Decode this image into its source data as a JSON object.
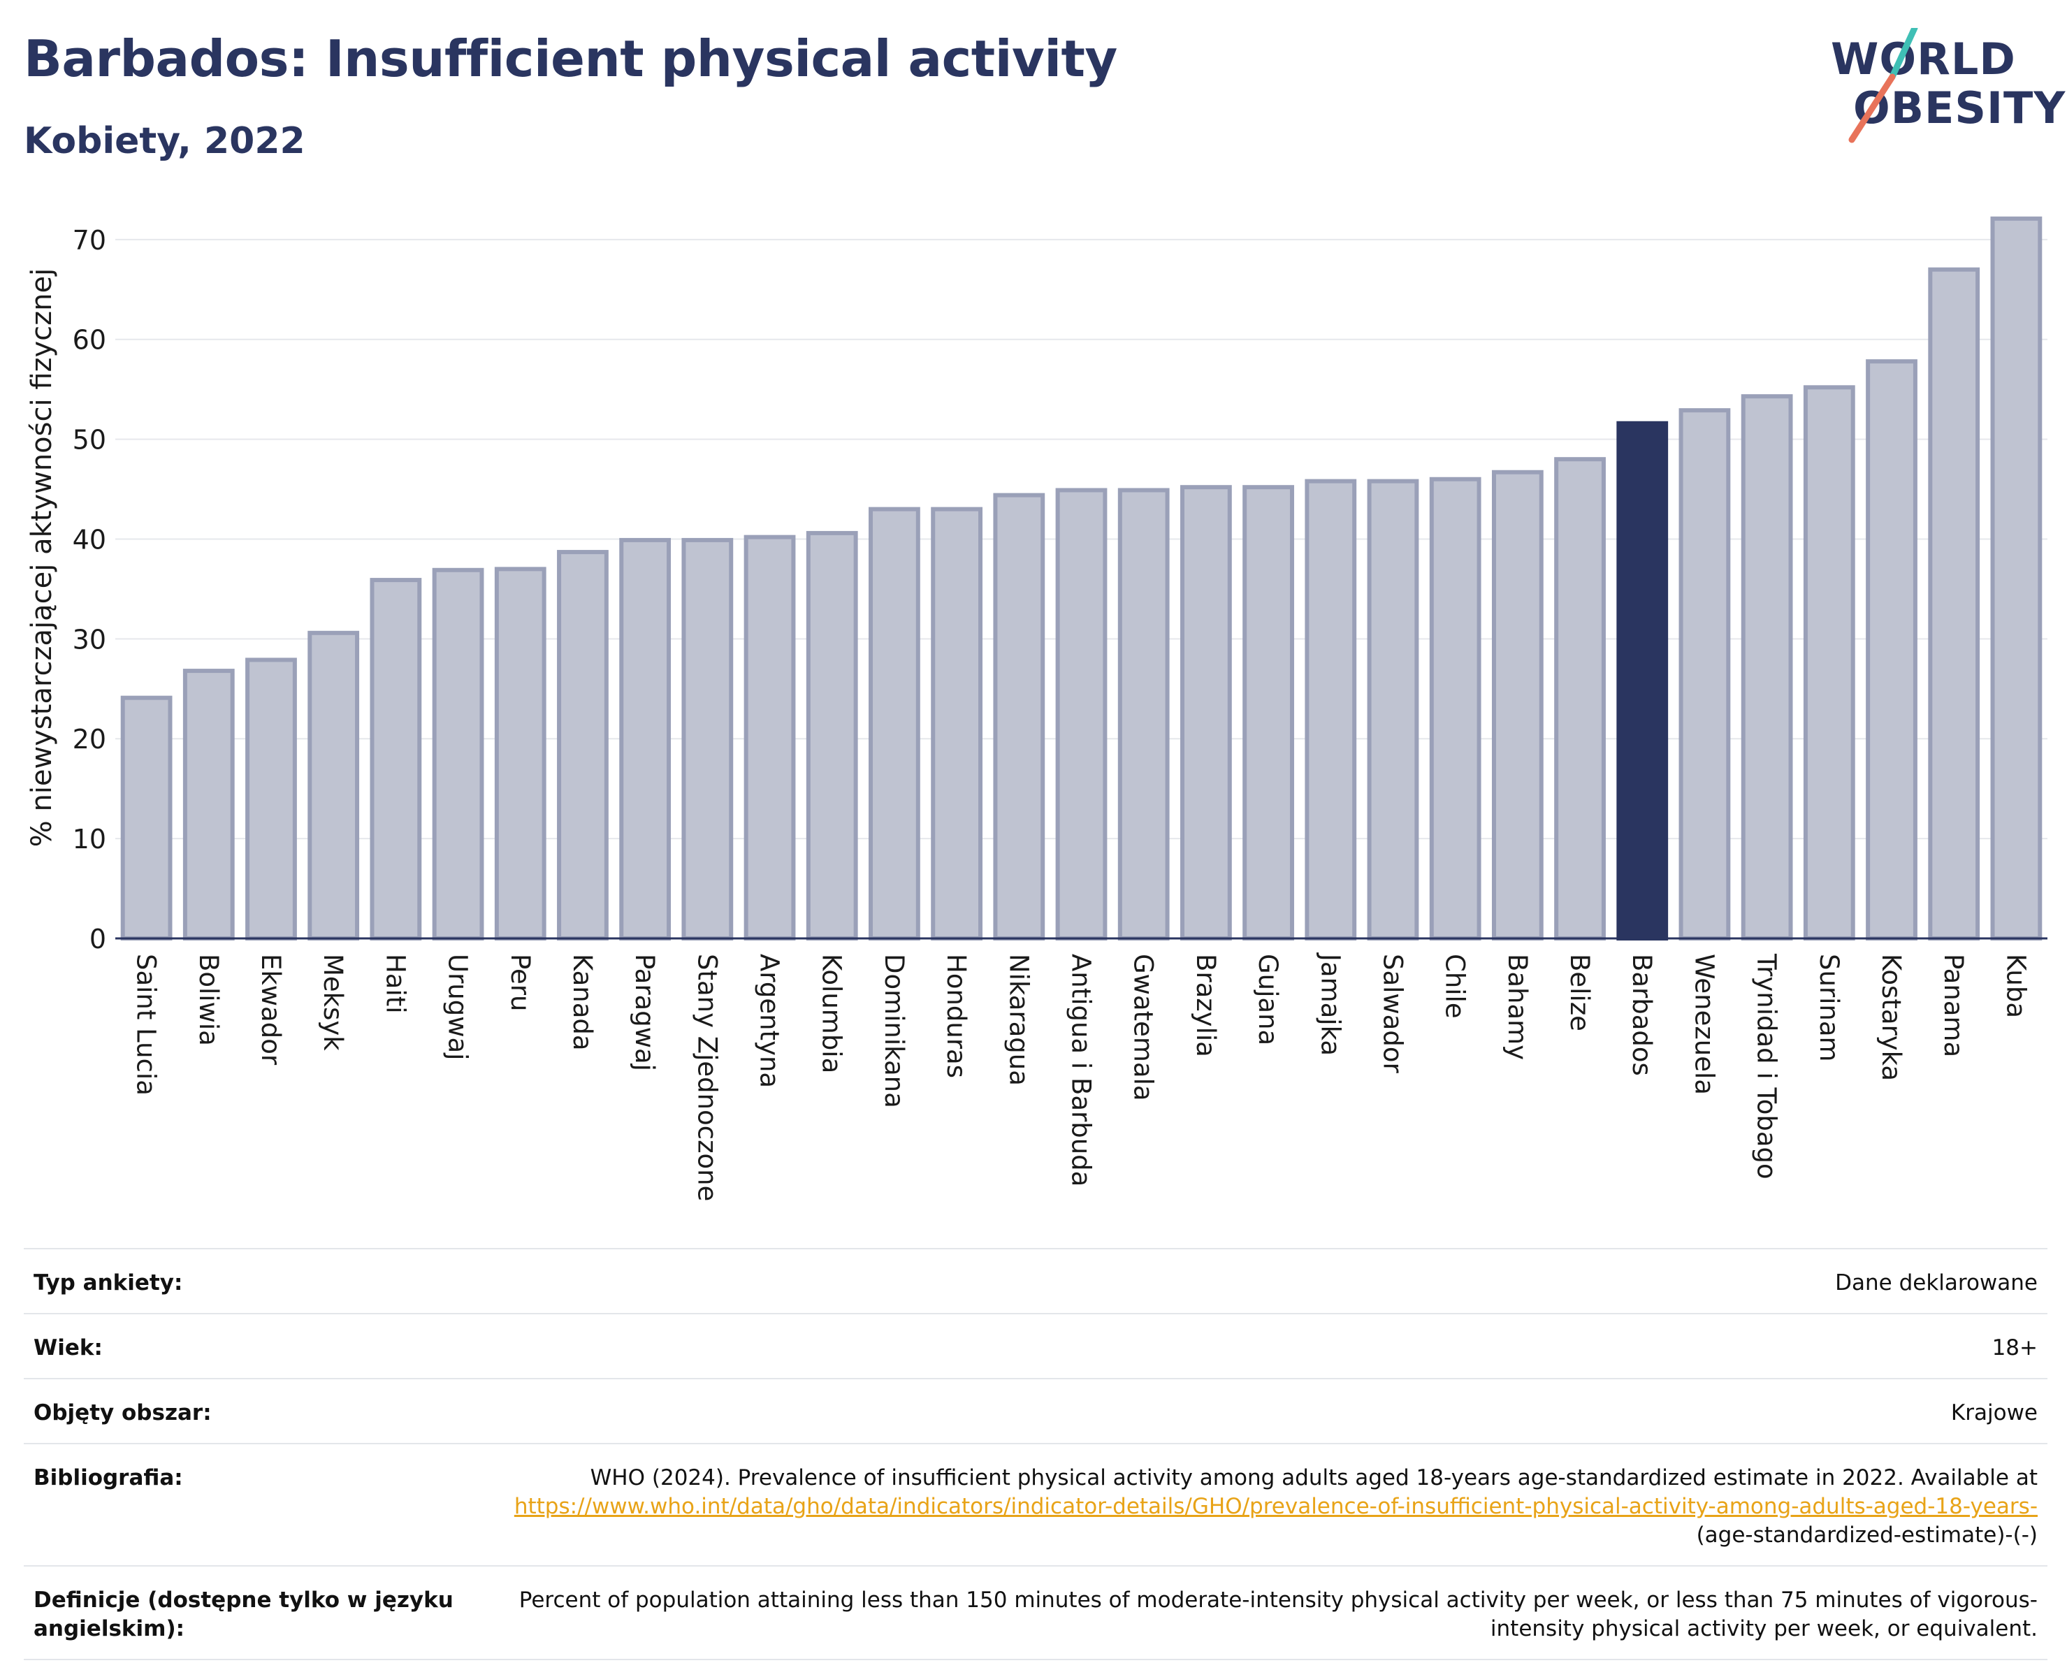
{
  "header": {
    "title": "Barbados: Insufficient physical activity",
    "subtitle": "Kobiety, 2022"
  },
  "logo": {
    "line1": "WORLD",
    "line2": "OBESITY",
    "accent_colors": [
      "#3fbfb5",
      "#e8735a"
    ]
  },
  "colors": {
    "bar": "#bfc3d1",
    "bar_edge": "#9aa0b8",
    "highlight": "#2a3560",
    "grid": "#e6e8ec"
  },
  "chart_data": {
    "type": "bar",
    "ylabel": "% niewystarczającej aktywności fizycznej",
    "xlabel": "",
    "ylim": [
      0,
      73
    ],
    "yticks": [
      0,
      10,
      20,
      30,
      40,
      50,
      60,
      70
    ],
    "grid": true,
    "highlight": "Barbados",
    "categories": [
      "Saint Lucia",
      "Boliwia",
      "Ekwador",
      "Meksyk",
      "Haiti",
      "Urugwaj",
      "Peru",
      "Kanada",
      "Paragwaj",
      "Stany Zjednoczone",
      "Argentyna",
      "Kolumbia",
      "Dominikana",
      "Honduras",
      "Nikaragua",
      "Antigua i Barbuda",
      "Gwatemala",
      "Brazylia",
      "Gujana",
      "Jamajka",
      "Salwador",
      "Chile",
      "Bahamy",
      "Belize",
      "Barbados",
      "Wenezuela",
      "Trynidad i Tobago",
      "Surinam",
      "Kostaryka",
      "Panama",
      "Kuba"
    ],
    "values": [
      24.1,
      26.8,
      27.9,
      30.6,
      35.9,
      36.9,
      37.0,
      38.7,
      39.9,
      39.9,
      40.2,
      40.6,
      43.0,
      43.0,
      44.4,
      44.9,
      44.9,
      45.2,
      45.2,
      45.8,
      45.8,
      46.0,
      46.7,
      48.0,
      51.6,
      52.9,
      54.3,
      55.2,
      57.8,
      67.0,
      72.1
    ]
  },
  "meta": [
    {
      "label": "Typ ankiety:",
      "value": "Dane deklarowane"
    },
    {
      "label": "Wiek:",
      "value": "18+"
    },
    {
      "label": "Objęty obszar:",
      "value": "Krajowe"
    },
    {
      "label": "Bibliografia:",
      "value": "WHO (2024). Prevalence of insufficient physical activity among adults aged 18-years age-standardized estimate in 2022. Available at",
      "link": "https://www.who.int/data/gho/data/indicators/indicator-details/GHO/prevalence-of-insufficient-physical-activity-among-adults-aged-18-years-",
      "value_suffix": "(age-standardized-estimate)-(-)"
    },
    {
      "label": "Definicje (dostępne tylko w języku angielskim):",
      "value": "Percent of population attaining less than 150 minutes of moderate-intensity physical activity per week, or less than 75 minutes of vigorous-intensity physical activity per week, or equivalent."
    }
  ]
}
